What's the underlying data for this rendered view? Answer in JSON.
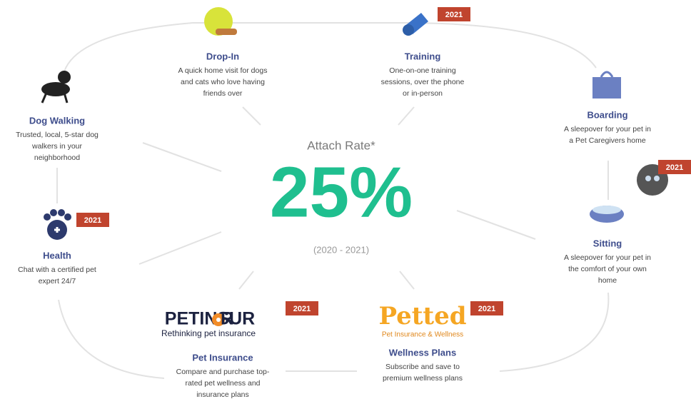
{
  "center": {
    "title": "Attach Rate*",
    "value": "25%",
    "period": "(2020 - 2021)"
  },
  "nodes": [
    {
      "title": "Drop-In",
      "description": [
        "A quick home visit for dogs",
        "and cats who love having",
        "friends over"
      ]
    },
    {
      "title": "Training",
      "badge": "2021",
      "description": [
        "One-on-one training",
        "sessions, over the phone",
        "or in-person"
      ]
    },
    {
      "title": "Boarding",
      "description": [
        "A sleepover for your pet in",
        "a Pet Caregivers home"
      ]
    },
    {
      "title": "Sitting",
      "badge": "2021",
      "description": [
        "A sleepover for your pet in",
        "the comfort of your own",
        "home"
      ]
    },
    {
      "title": "Wellness Plans",
      "badge": "2021",
      "logo": "Petted",
      "tagline": "Pet Insurance & Wellness",
      "description": [
        "Subscribe and save to",
        "premium wellness plans"
      ]
    },
    {
      "title": "Pet Insurance",
      "badge": "2021",
      "logo": [
        "PETINSUR",
        "R"
      ],
      "tagline": "Rethinking pet insurance",
      "description": [
        "Compare and purchase top-",
        "rated pet wellness and",
        "insurance plans"
      ]
    },
    {
      "title": "Health",
      "badge": "2021",
      "description": [
        "Chat with a certified pet",
        "expert 24/7"
      ]
    },
    {
      "title": "Dog Walking",
      "description": [
        "Trusted, local, 5-star dog",
        "walkers in your",
        "neighborhood"
      ]
    }
  ]
}
